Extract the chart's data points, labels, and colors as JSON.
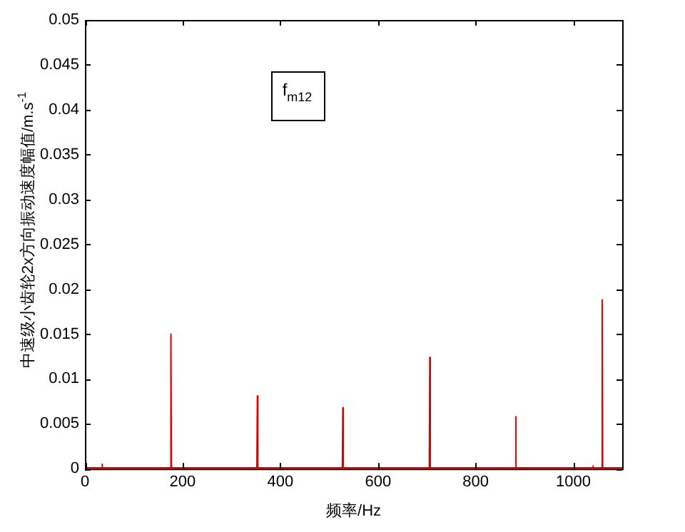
{
  "chart_data": {
    "type": "line",
    "xlabel": "频率/Hz",
    "ylabel": "中速级小齿轮2x方向振动速度幅值/m.s$^{-1}$",
    "annotations": [
      "f$_{m12}$"
    ],
    "xlim": [
      0,
      1100
    ],
    "ylim": [
      0,
      0.05
    ],
    "xticks": [
      0,
      200,
      400,
      600,
      800,
      1000
    ],
    "yticks": [
      0,
      0.005,
      0.01,
      0.015,
      0.02,
      0.025,
      0.03,
      0.035,
      0.04,
      0.045,
      0.05
    ],
    "grid": false,
    "legend": false,
    "marker": "none",
    "line_style": "solid",
    "series": [
      {
        "color": "#dd0000",
        "x": [
          0,
          34,
          35,
          36,
          175,
          176,
          177,
          352,
          353,
          354,
          527,
          528,
          529,
          531,
          705,
          706,
          707,
          881,
          882,
          883,
          1039,
          1040,
          1041,
          1058,
          1059,
          1060,
          1100
        ],
        "values": [
          0.0001,
          0.0001,
          0.0005,
          0.0001,
          0.0001,
          0.015,
          0.0001,
          0.0001,
          0.0081,
          0.0001,
          0.0001,
          0.0068,
          0.0001,
          0.0001,
          0.0001,
          0.0124,
          0.0001,
          0.0001,
          0.0058,
          0.0001,
          0.0001,
          0.0003,
          0.0001,
          0.0001,
          0.0188,
          0.0001,
          0.0001
        ]
      }
    ]
  }
}
